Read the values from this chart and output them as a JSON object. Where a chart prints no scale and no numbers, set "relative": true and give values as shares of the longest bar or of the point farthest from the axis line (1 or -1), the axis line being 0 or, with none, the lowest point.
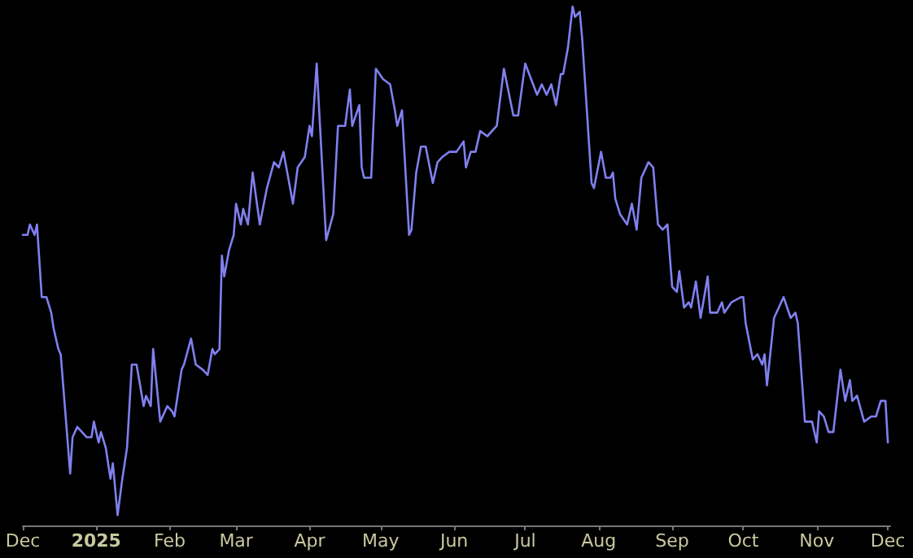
{
  "chart_data": {
    "type": "line",
    "relative": true,
    "grid": false,
    "marker": "none",
    "line_style": "solid",
    "xlim": [
      "2024-12-01",
      "2025-12-02"
    ],
    "xticks": [
      {
        "value": "2024-12-01",
        "label": "Dec"
      },
      {
        "value": "2025-01-01",
        "label": "2025"
      },
      {
        "value": "2025-02-01",
        "label": "Feb"
      },
      {
        "value": "2025-03-01",
        "label": "Mar"
      },
      {
        "value": "2025-04-01",
        "label": "Apr"
      },
      {
        "value": "2025-05-01",
        "label": "May"
      },
      {
        "value": "2025-06-01",
        "label": "Jun"
      },
      {
        "value": "2025-07-01",
        "label": "Jul"
      },
      {
        "value": "2025-08-01",
        "label": "Aug"
      },
      {
        "value": "2025-09-01",
        "label": "Sep"
      },
      {
        "value": "2025-10-01",
        "label": "Oct"
      },
      {
        "value": "2025-11-01",
        "label": "Nov"
      },
      {
        "value": "2025-12-01",
        "label": "Dec"
      }
    ],
    "series": [
      {
        "color": "#8080f0",
        "x": [
          "2024-12-01",
          "2024-12-03",
          "2024-12-04",
          "2024-12-06",
          "2024-12-07",
          "2024-12-09",
          "2024-12-11",
          "2024-12-13",
          "2024-12-14",
          "2024-12-16",
          "2024-12-17",
          "2024-12-21",
          "2024-12-22",
          "2024-12-24",
          "2024-12-28",
          "2024-12-30",
          "2024-12-31",
          "2025-01-02",
          "2025-01-03",
          "2025-01-05",
          "2025-01-07",
          "2025-01-08",
          "2025-01-10",
          "2025-01-12",
          "2025-01-14",
          "2025-01-16",
          "2025-01-18",
          "2025-01-21",
          "2025-01-22",
          "2025-01-24",
          "2025-01-25",
          "2025-01-28",
          "2025-01-31",
          "2025-02-02",
          "2025-02-03",
          "2025-02-06",
          "2025-02-07",
          "2025-02-10",
          "2025-02-12",
          "2025-02-15",
          "2025-02-17",
          "2025-02-19",
          "2025-02-20",
          "2025-02-22",
          "2025-02-23",
          "2025-02-24",
          "2025-02-26",
          "2025-02-28",
          "2025-03-01",
          "2025-03-03",
          "2025-03-04",
          "2025-03-06",
          "2025-03-08",
          "2025-03-11",
          "2025-03-14",
          "2025-03-17",
          "2025-03-19",
          "2025-03-21",
          "2025-03-25",
          "2025-03-27",
          "2025-03-30",
          "2025-04-01",
          "2025-04-02",
          "2025-04-04",
          "2025-04-08",
          "2025-04-11",
          "2025-04-13",
          "2025-04-16",
          "2025-04-18",
          "2025-04-19",
          "2025-04-22",
          "2025-04-23",
          "2025-04-24",
          "2025-04-27",
          "2025-04-29",
          "2025-05-02",
          "2025-05-05",
          "2025-05-07",
          "2025-05-08",
          "2025-05-10",
          "2025-05-13",
          "2025-05-14",
          "2025-05-16",
          "2025-05-18",
          "2025-05-20",
          "2025-05-23",
          "2025-05-25",
          "2025-05-27",
          "2025-05-30",
          "2025-06-02",
          "2025-06-05",
          "2025-06-06",
          "2025-06-08",
          "2025-06-10",
          "2025-06-12",
          "2025-06-15",
          "2025-06-19",
          "2025-06-22",
          "2025-06-26",
          "2025-06-28",
          "2025-07-01",
          "2025-07-06",
          "2025-07-08",
          "2025-07-10",
          "2025-07-12",
          "2025-07-14",
          "2025-07-16",
          "2025-07-17",
          "2025-07-19",
          "2025-07-21",
          "2025-07-22",
          "2025-07-24",
          "2025-07-25",
          "2025-07-29",
          "2025-07-30",
          "2025-08-02",
          "2025-08-04",
          "2025-08-06",
          "2025-08-07",
          "2025-08-08",
          "2025-08-10",
          "2025-08-13",
          "2025-08-15",
          "2025-08-17",
          "2025-08-19",
          "2025-08-22",
          "2025-08-24",
          "2025-08-26",
          "2025-08-28",
          "2025-08-30",
          "2025-09-01",
          "2025-09-03",
          "2025-09-04",
          "2025-09-06",
          "2025-09-08",
          "2025-09-09",
          "2025-09-11",
          "2025-09-13",
          "2025-09-16",
          "2025-09-17",
          "2025-09-20",
          "2025-09-22",
          "2025-09-23",
          "2025-09-26",
          "2025-09-30",
          "2025-10-01",
          "2025-10-02",
          "2025-10-05",
          "2025-10-07",
          "2025-10-09",
          "2025-10-10",
          "2025-10-11",
          "2025-10-14",
          "2025-10-15",
          "2025-10-18",
          "2025-10-21",
          "2025-10-23",
          "2025-10-24",
          "2025-10-27",
          "2025-10-30",
          "2025-11-01",
          "2025-11-02",
          "2025-11-04",
          "2025-11-06",
          "2025-11-08",
          "2025-11-11",
          "2025-11-13",
          "2025-11-15",
          "2025-11-16",
          "2025-11-18",
          "2025-11-21",
          "2025-11-24",
          "2025-11-26",
          "2025-11-28",
          "2025-11-30",
          "2025-12-01"
        ],
        "values": [
          0.56,
          0.56,
          0.58,
          0.56,
          0.58,
          0.44,
          0.44,
          0.41,
          0.38,
          0.34,
          0.33,
          0.1,
          0.17,
          0.19,
          0.17,
          0.17,
          0.2,
          0.16,
          0.18,
          0.15,
          0.09,
          0.12,
          0.02,
          0.09,
          0.15,
          0.31,
          0.31,
          0.23,
          0.25,
          0.23,
          0.34,
          0.2,
          0.23,
          0.22,
          0.21,
          0.3,
          0.31,
          0.36,
          0.31,
          0.3,
          0.29,
          0.34,
          0.33,
          0.34,
          0.52,
          0.48,
          0.53,
          0.56,
          0.62,
          0.58,
          0.61,
          0.58,
          0.68,
          0.58,
          0.65,
          0.7,
          0.69,
          0.72,
          0.62,
          0.69,
          0.71,
          0.77,
          0.75,
          0.89,
          0.55,
          0.6,
          0.77,
          0.77,
          0.84,
          0.77,
          0.81,
          0.69,
          0.67,
          0.67,
          0.88,
          0.86,
          0.85,
          0.8,
          0.77,
          0.8,
          0.56,
          0.57,
          0.68,
          0.73,
          0.73,
          0.66,
          0.7,
          0.71,
          0.72,
          0.72,
          0.74,
          0.69,
          0.72,
          0.72,
          0.76,
          0.75,
          0.77,
          0.88,
          0.79,
          0.79,
          0.89,
          0.83,
          0.85,
          0.83,
          0.85,
          0.81,
          0.87,
          0.87,
          0.92,
          1.0,
          0.98,
          0.99,
          0.94,
          0.66,
          0.65,
          0.72,
          0.67,
          0.67,
          0.68,
          0.63,
          0.6,
          0.58,
          0.62,
          0.57,
          0.67,
          0.7,
          0.69,
          0.58,
          0.57,
          0.58,
          0.46,
          0.45,
          0.49,
          0.42,
          0.43,
          0.42,
          0.47,
          0.4,
          0.48,
          0.41,
          0.41,
          0.43,
          0.41,
          0.43,
          0.44,
          0.44,
          0.39,
          0.32,
          0.33,
          0.31,
          0.33,
          0.27,
          0.4,
          0.41,
          0.44,
          0.4,
          0.41,
          0.39,
          0.2,
          0.2,
          0.16,
          0.22,
          0.21,
          0.18,
          0.18,
          0.3,
          0.24,
          0.28,
          0.24,
          0.25,
          0.2,
          0.21,
          0.21,
          0.24,
          0.24,
          0.16
        ]
      }
    ]
  }
}
